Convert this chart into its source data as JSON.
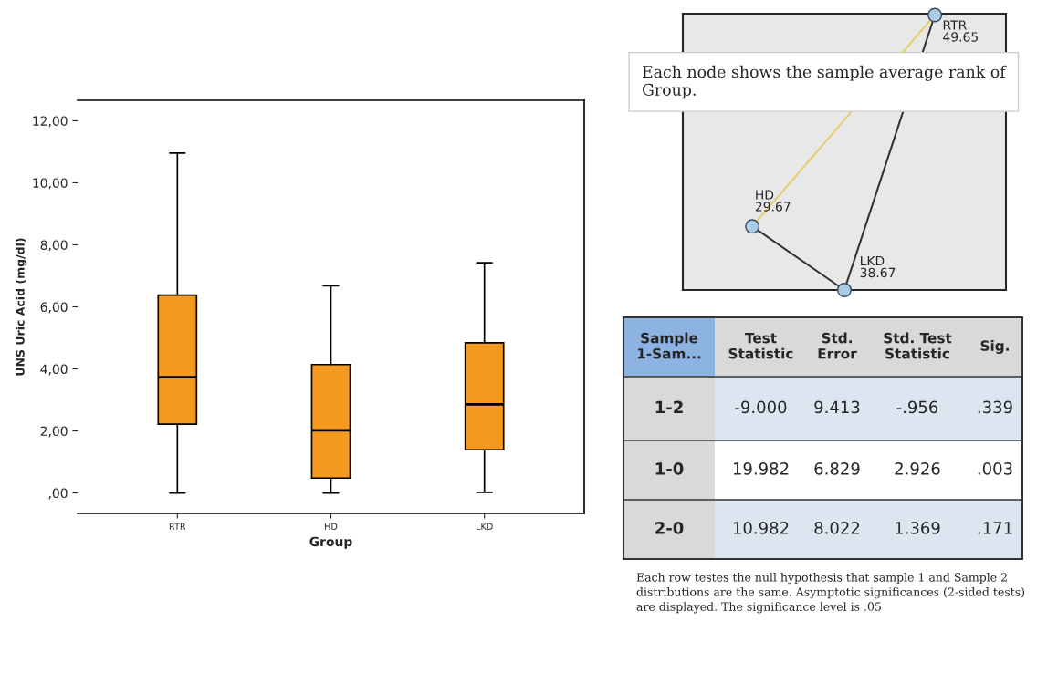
{
  "chart_data": [
    {
      "type": "box",
      "xlabel": "Group",
      "ylabel": "UNS Uric Acid (mg/dl)",
      "categories": [
        "RTR",
        "HD",
        "LKD"
      ],
      "color": "#f59a1e",
      "boxes": [
        {
          "low": 0,
          "q1": 2.22,
          "median": 3.73,
          "q3": 6.38,
          "high": 10.96
        },
        {
          "low": 0,
          "q1": 0.48,
          "median": 2.02,
          "q3": 4.14,
          "high": 6.68
        },
        {
          "low": 0.02,
          "q1": 1.39,
          "median": 2.86,
          "q3": 4.84,
          "high": 7.42
        }
      ],
      "ylim": [
        -0.66,
        12.66
      ],
      "yticks": [
        {
          "value": 0,
          "label": ",00"
        },
        {
          "value": 2,
          "label": "2,00"
        },
        {
          "value": 4,
          "label": "4,00"
        },
        {
          "value": 6,
          "label": "6,00"
        },
        {
          "value": 8,
          "label": "8,00"
        },
        {
          "value": 10,
          "label": "10,00"
        },
        {
          "value": 12,
          "label": "12,00"
        }
      ],
      "grid": false
    },
    {
      "type": "other",
      "categories": [
        "RTR",
        "HD",
        "LKD"
      ],
      "values": [
        49.65,
        29.67,
        38.67
      ],
      "data_labels": true,
      "annotations": [
        "Each node shows the sample average rank of Group."
      ]
    },
    {
      "type": "other",
      "categories": [
        "Sample 1-Sam...",
        "Test Statistic",
        "Std. Error",
        "Std. Test Statistic",
        "Sig."
      ],
      "y_categories": [
        "1-2",
        "1-0",
        "2-0"
      ],
      "cell_labels": [
        [
          "-9.000",
          "9.413",
          "-.956",
          ".339"
        ],
        [
          "19.982",
          "6.829",
          "2.926",
          ".003"
        ],
        [
          "10.982",
          "8.022",
          "1.369",
          ".171"
        ]
      ],
      "annotations": [
        "Each row testes the null hypothesis that sample 1 and Sample 2 distributions are the same. Asymptotic significances (2-sided tests) are displayed. The significance level is .05"
      ]
    }
  ]
}
